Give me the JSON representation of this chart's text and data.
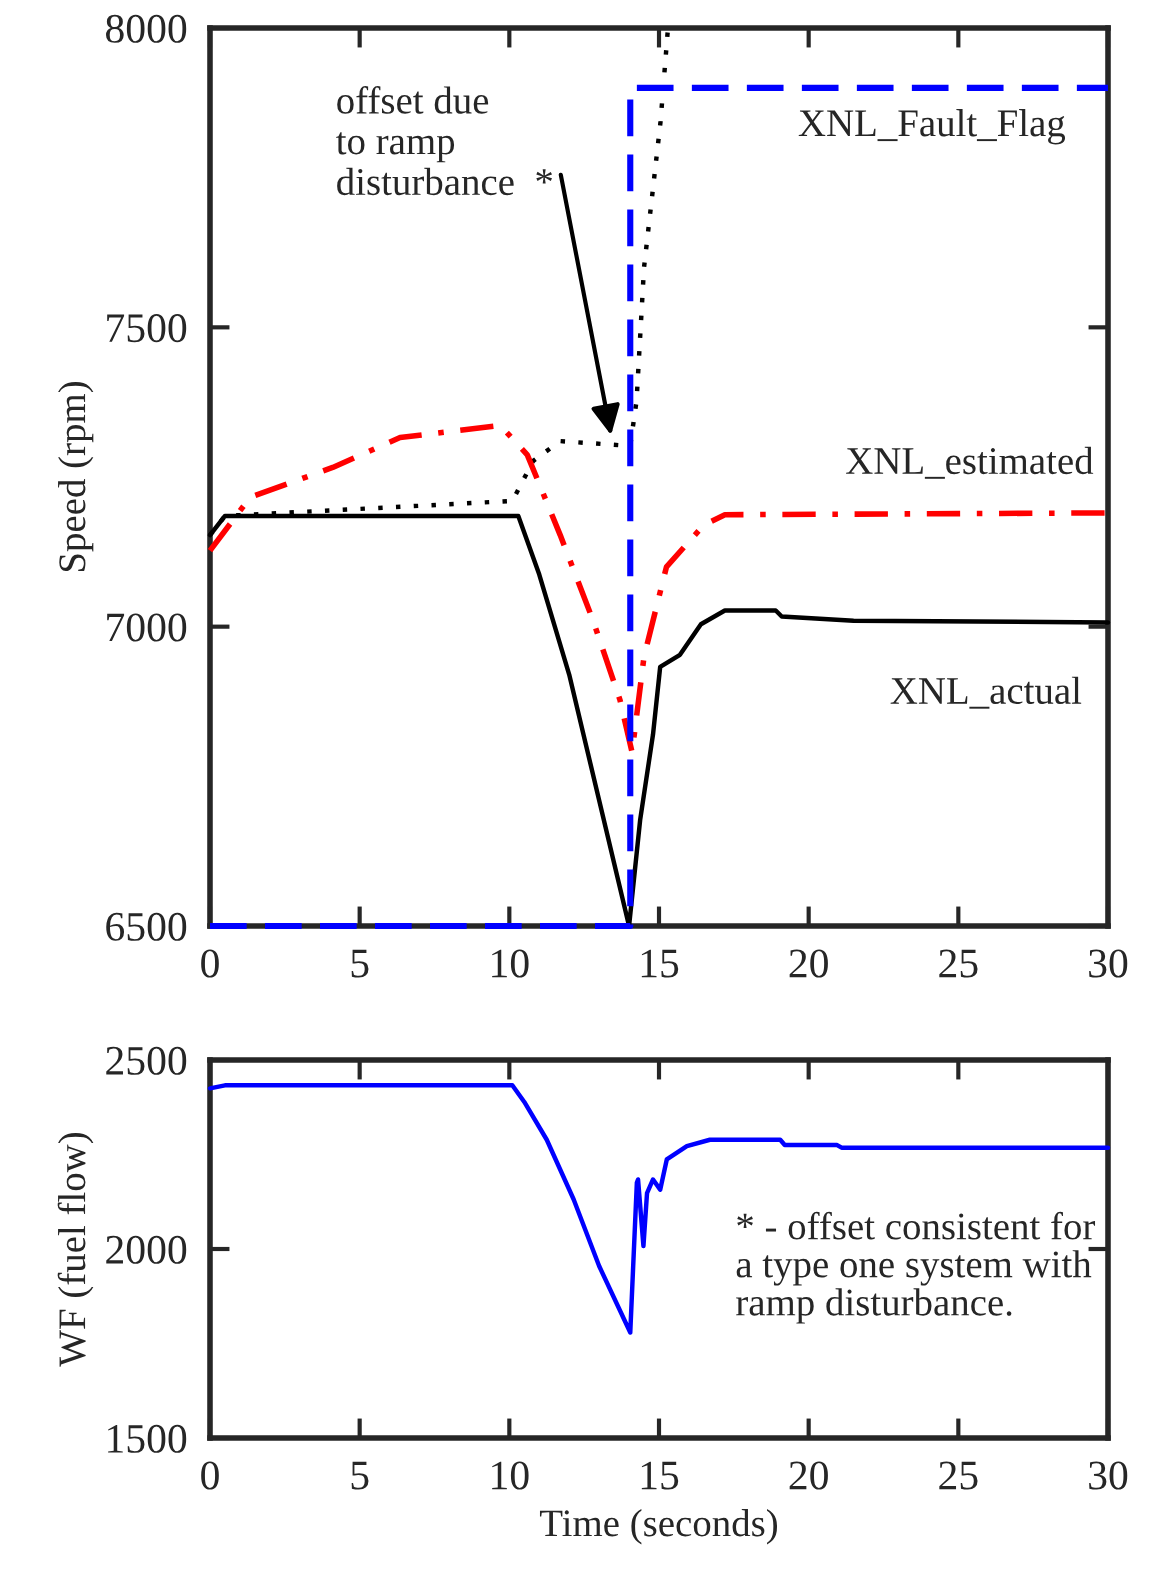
{
  "chart_data": [
    {
      "type": "line",
      "ylabel": "Speed (rpm)",
      "xlim": [
        0,
        30
      ],
      "xticks": [
        0,
        5,
        10,
        15,
        20,
        25,
        30
      ],
      "ylim": [
        6500,
        8000
      ],
      "yticks": [
        6500,
        7000,
        7500,
        8000
      ],
      "grid": false,
      "marker": "none",
      "series": [
        {
          "name": "XNL_Fault_Flag",
          "color": "#0000ff",
          "line_style": "dashed",
          "x": [
            0,
            14.04,
            14.04,
            30
          ],
          "values": [
            6500,
            6500,
            7900,
            7900
          ]
        },
        {
          "name": "XNL_estimated",
          "color": "#ff0000",
          "line_style": "dashdot",
          "x": [
            0,
            1.34,
            4.1,
            6.35,
            9.7,
            10.6,
            11.7,
            12.8,
            13.7,
            14.1,
            14.5,
            15.25,
            16.5,
            17.2,
            30
          ],
          "values": [
            7127,
            7216,
            7266,
            7316,
            7336,
            7287,
            7153,
            7010,
            6877,
            6790,
            6950,
            7100,
            7170,
            7187,
            7190
          ]
        },
        {
          "name": "XNL_actual",
          "color": "#000000",
          "line_style": "solid",
          "x": [
            0,
            0.5,
            10.3,
            11.0,
            12.0,
            13.0,
            14.0,
            14.37,
            14.8,
            15.04,
            15.7,
            16.4,
            17.2,
            18.9,
            19.1,
            21.5,
            30
          ],
          "values": [
            7153,
            7185,
            7185,
            7087,
            6920,
            6710,
            6500,
            6677,
            6820,
            6933,
            6953,
            7004,
            7027,
            7027,
            7017,
            7010,
            7007
          ]
        },
        {
          "color": "#000000",
          "line_style": "dotted",
          "x": [
            0,
            0.5,
            10.1,
            10.8,
            11.7,
            13.7,
            14.04,
            14.25,
            14.5,
            15.05,
            15.3
          ],
          "values": [
            7153,
            7185,
            7210,
            7277,
            7310,
            7303,
            7303,
            7377,
            7600,
            7843,
            8000
          ]
        }
      ],
      "annotations": [
        {
          "text": "offset due\nto ramp\ndisturbance  *",
          "x": 13.4,
          "y": 7320
        }
      ]
    },
    {
      "type": "line",
      "xlabel": "Time (seconds)",
      "ylabel": "WF (fuel flow)",
      "xlim": [
        0,
        30
      ],
      "xticks": [
        0,
        5,
        10,
        15,
        20,
        25,
        30
      ],
      "ylim": [
        1500,
        2500
      ],
      "yticks": [
        1500,
        2000,
        2500
      ],
      "grid": false,
      "marker": "none",
      "series": [
        {
          "color": "#0000ff",
          "line_style": "solid",
          "x": [
            0,
            0.5,
            10.1,
            10.5,
            11.25,
            12.15,
            13.0,
            14.04,
            14.26,
            14.3,
            14.48,
            14.6,
            14.8,
            15.04,
            15.26,
            15.93,
            16.7,
            19.05,
            19.2,
            20.95,
            21.1,
            30
          ],
          "values": [
            2425,
            2433,
            2433,
            2389,
            2289,
            2131,
            1955,
            1779,
            2175,
            2184,
            2008,
            2148,
            2184,
            2157,
            2237,
            2272,
            2289,
            2289,
            2275,
            2275,
            2268,
            2268
          ]
        }
      ],
      "annotations": [
        "* - offset consistent for\na type one system with\nramp disturbance."
      ]
    }
  ]
}
